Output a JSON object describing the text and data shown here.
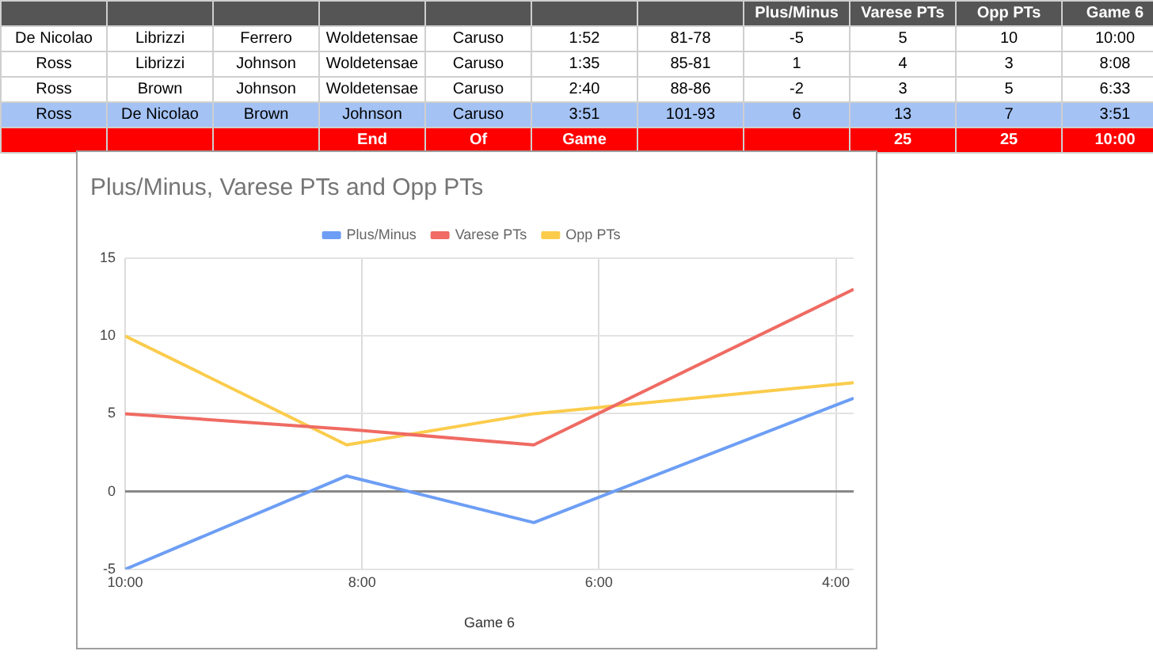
{
  "chart_data": {
    "type": "line",
    "title": "Plus/Minus, Varese PTs and Opp PTs",
    "xlabel": "Game 6",
    "x": [
      10,
      8.13,
      6.55,
      3.85
    ],
    "series": [
      {
        "name": "Plus/Minus",
        "color": "#6d9ef5",
        "values": [
          -5,
          1,
          -2,
          6
        ]
      },
      {
        "name": "Varese PTs",
        "color": "#ef6b63",
        "values": [
          5,
          4,
          3,
          13
        ]
      },
      {
        "name": "Opp PTs",
        "color": "#fbcc4c",
        "values": [
          10,
          3,
          5,
          7
        ]
      }
    ],
    "xlim": [
      10,
      3.85
    ],
    "xticks": [
      {
        "value": 10,
        "label": "10:00"
      },
      {
        "value": 8,
        "label": "8:00"
      },
      {
        "value": 6,
        "label": "6:00"
      },
      {
        "value": 4,
        "label": "4:00"
      }
    ],
    "ylim": [
      -5,
      15
    ],
    "yticks": [
      -5,
      0,
      5,
      10,
      15
    ],
    "grid": true,
    "legend": "top",
    "marker": "none",
    "line_style": "solid",
    "annotations": [
      "Plus/Minus",
      "Varese PTs",
      "Opp PTs",
      "Game 6",
      "De Nicolao",
      "Librizzi",
      "Ferrero",
      "Woldetensae",
      "Caruso",
      "1:52",
      "81-78",
      "-5",
      "5",
      "10",
      "10:00",
      "Ross",
      "Librizzi",
      "Johnson",
      "Woldetensae",
      "Caruso",
      "1:35",
      "85-81",
      "1",
      "4",
      "3",
      "8:08",
      "Ross",
      "Brown",
      "Johnson",
      "Woldetensae",
      "Caruso",
      "2:40",
      "88-86",
      "-2",
      "3",
      "5",
      "6:33",
      "Ross",
      "De Nicolao",
      "Brown",
      "Johnson",
      "Caruso",
      "3:51",
      "101-93",
      "6",
      "13",
      "7",
      "3:51",
      "End",
      "Of",
      "Game",
      "25",
      "25",
      "10:00"
    ]
  }
}
